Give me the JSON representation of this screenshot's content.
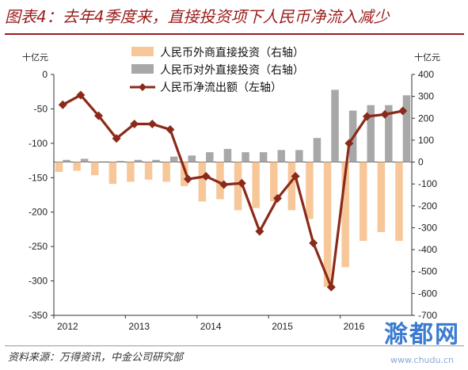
{
  "title": "图表4：去年4季度来，直接投资项下人民币净流入减少",
  "source": "资料来源：万得资讯，中金公司研究部",
  "watermark": "滁都网",
  "watermark_sub": "www.chudu.cn",
  "colors": {
    "title": "#9b1c1c",
    "fdi_bar": "#f7c79a",
    "odi_bar": "#a8a8a8",
    "net_line": "#8b2a1a"
  },
  "chart_data": {
    "type": "bar+line",
    "left_axis": {
      "unit": "十亿元",
      "min": -350,
      "max": 0,
      "ticks": [
        0,
        -50,
        -100,
        -150,
        -200,
        -250,
        -300,
        -350
      ]
    },
    "right_axis": {
      "unit": "十亿元",
      "min": -700,
      "max": 400,
      "ticks": [
        400,
        300,
        200,
        100,
        0,
        -100,
        -200,
        -300,
        -400,
        -500,
        -600,
        -700
      ]
    },
    "x_tick_labels": [
      "2012",
      "2013",
      "2014",
      "2015",
      "2016"
    ],
    "legend": [
      {
        "label": "人民币外商直接投资（右轴）",
        "kind": "bar",
        "series": "fdi"
      },
      {
        "label": "人民币对外直接投资（右轴）",
        "kind": "bar",
        "series": "odi"
      },
      {
        "label": "人民币净流出额（左轴）",
        "kind": "line",
        "series": "net"
      }
    ],
    "periods": [
      "2012Q1",
      "2012Q2",
      "2012Q3",
      "2012Q4",
      "2013Q1",
      "2013Q2",
      "2013Q3",
      "2013Q4",
      "2014Q1",
      "2014Q2",
      "2014Q3",
      "2014Q4",
      "2015Q1",
      "2015Q2",
      "2015Q3",
      "2015Q4",
      "2016Q1",
      "2016Q2",
      "2016Q3",
      "2016Q4"
    ],
    "series": [
      {
        "key": "fdi",
        "axis": "right",
        "values": [
          -45,
          -40,
          -60,
          -100,
          -90,
          -80,
          -90,
          -110,
          -180,
          -170,
          -220,
          -210,
          -180,
          -220,
          -260,
          -570,
          -480,
          -360,
          -320,
          -360
        ]
      },
      {
        "key": "odi",
        "axis": "right",
        "values": [
          10,
          15,
          0,
          5,
          10,
          10,
          25,
          30,
          45,
          60,
          45,
          45,
          55,
          55,
          110,
          330,
          235,
          260,
          260,
          305
        ]
      },
      {
        "key": "net",
        "axis": "left",
        "values": [
          -44,
          -30,
          -60,
          -93,
          -72,
          -72,
          -80,
          -152,
          -148,
          -160,
          -158,
          -228,
          -180,
          -148,
          -245,
          -309,
          -100,
          -61,
          -58,
          -53
        ]
      }
    ]
  }
}
